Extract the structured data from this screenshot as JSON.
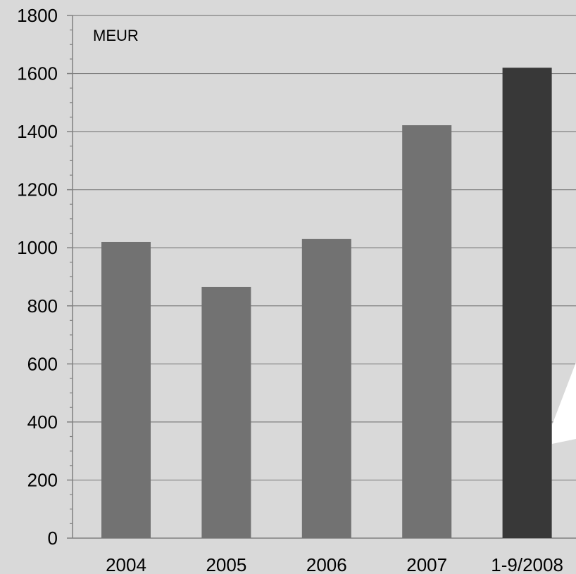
{
  "chart_data": {
    "type": "bar",
    "unit_label": "MEUR",
    "categories": [
      "2004",
      "2005",
      "2006",
      "2007",
      "1-9/2008"
    ],
    "values": [
      1020,
      865,
      1030,
      1422,
      1620
    ],
    "ylim": [
      0,
      1800
    ],
    "y_ticks": [
      0,
      200,
      400,
      600,
      800,
      1000,
      1200,
      1400,
      1600,
      1800
    ],
    "y_minor_step": 50,
    "grid": true,
    "bar_colors": [
      "#727272",
      "#727272",
      "#727272",
      "#727272",
      "#383838"
    ],
    "gridline_color": "#808080",
    "background": "#d9d9d9"
  }
}
